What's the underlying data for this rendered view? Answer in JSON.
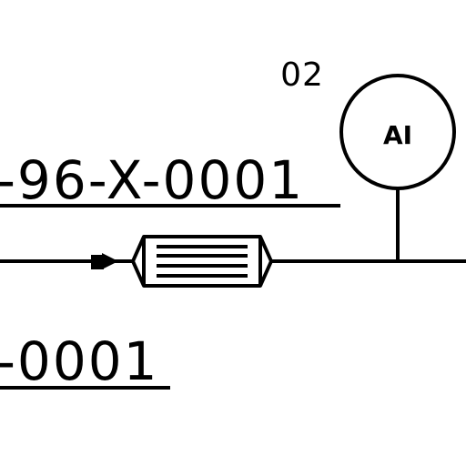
{
  "diagram": {
    "instrument": {
      "tag_number": "02",
      "function_code": "AI"
    },
    "line_labels": {
      "upper": "-96-X-0001",
      "lower": "-0001"
    }
  }
}
